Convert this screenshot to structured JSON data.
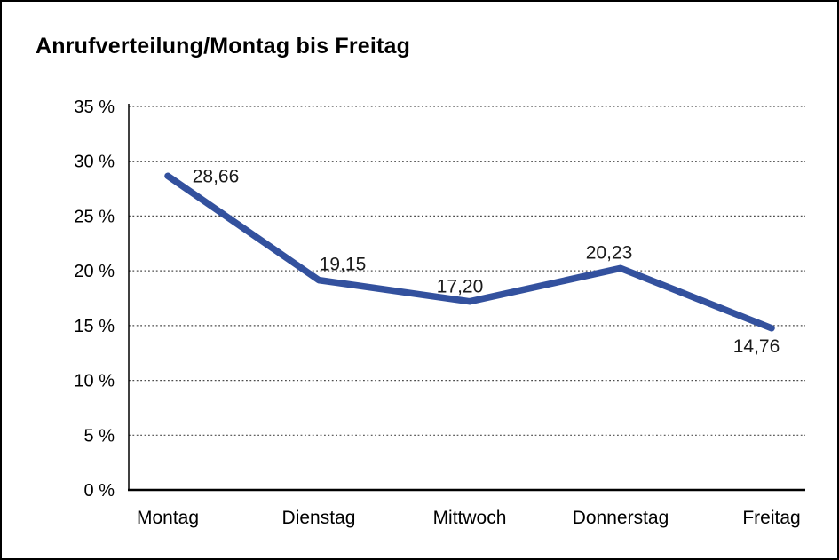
{
  "page": {
    "title": "Anrufverteilung/Montag bis Freitag"
  },
  "chart_data": {
    "type": "line",
    "title": "Anrufverteilung/Montag bis Freitag",
    "categories": [
      "Montag",
      "Dienstag",
      "Mittwoch",
      "Donnerstag",
      "Freitag"
    ],
    "values": [
      28.66,
      19.15,
      17.2,
      20.23,
      14.76
    ],
    "value_labels": [
      "28,66",
      "19,15",
      "17,20",
      "20,23",
      "14,76"
    ],
    "xlabel": "",
    "ylabel": "",
    "ylim": [
      0,
      35
    ],
    "ytick_step": 5,
    "ytick_labels": [
      "0 %",
      "5 %",
      "10 %",
      "15 %",
      "20 %",
      "25 %",
      "30 %",
      "35 %"
    ],
    "grid": "horizontal-dotted",
    "legend": "none",
    "colors": {
      "line": "#33519e",
      "axis": "#000000",
      "gridline": "#4c4c4c",
      "text": "#1a1a1a",
      "background": "#ffffff",
      "border": "#000000"
    }
  }
}
